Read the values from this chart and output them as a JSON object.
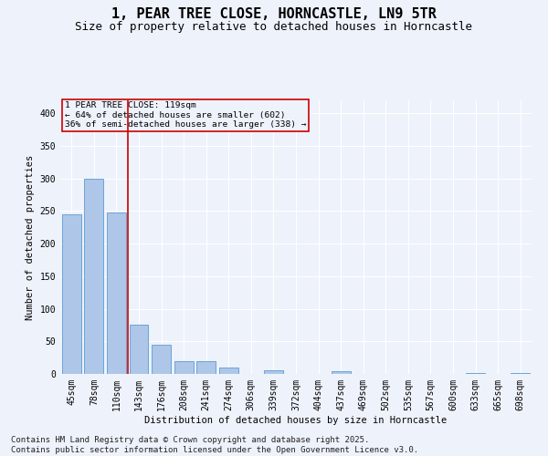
{
  "title": "1, PEAR TREE CLOSE, HORNCASTLE, LN9 5TR",
  "subtitle": "Size of property relative to detached houses in Horncastle",
  "xlabel": "Distribution of detached houses by size in Horncastle",
  "ylabel": "Number of detached properties",
  "categories": [
    "45sqm",
    "78sqm",
    "110sqm",
    "143sqm",
    "176sqm",
    "208sqm",
    "241sqm",
    "274sqm",
    "306sqm",
    "339sqm",
    "372sqm",
    "404sqm",
    "437sqm",
    "469sqm",
    "502sqm",
    "535sqm",
    "567sqm",
    "600sqm",
    "633sqm",
    "665sqm",
    "698sqm"
  ],
  "values": [
    245,
    300,
    248,
    75,
    45,
    20,
    20,
    10,
    0,
    6,
    0,
    0,
    4,
    0,
    0,
    0,
    0,
    0,
    1,
    0,
    1
  ],
  "bar_color": "#aec6e8",
  "bar_edge_color": "#5b9bd5",
  "vline_pos": 2.5,
  "vline_color": "#cc0000",
  "annotation_text": "1 PEAR TREE CLOSE: 119sqm\n← 64% of detached houses are smaller (602)\n36% of semi-detached houses are larger (338) →",
  "annotation_box_color": "#cc0000",
  "ylim": [
    0,
    420
  ],
  "yticks": [
    0,
    50,
    100,
    150,
    200,
    250,
    300,
    350,
    400
  ],
  "footer": "Contains HM Land Registry data © Crown copyright and database right 2025.\nContains public sector information licensed under the Open Government Licence v3.0.",
  "bg_color": "#eef2fb",
  "grid_color": "#ffffff",
  "title_fontsize": 11,
  "subtitle_fontsize": 9,
  "axis_fontsize": 7,
  "footer_fontsize": 6.5
}
